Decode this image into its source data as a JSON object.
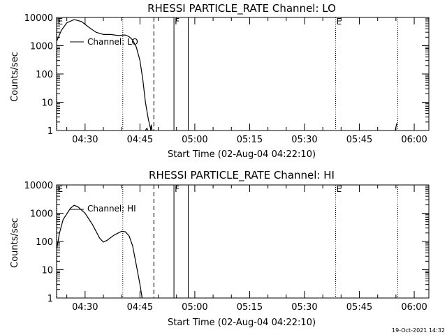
{
  "chart_data": [
    {
      "type": "line",
      "title": "RHESSI PARTICLE_RATE Channel: LO",
      "xlabel": "Start Time (02-Aug-04 04:22:10)",
      "ylabel": "Counts/sec",
      "yscale": "log",
      "ylim": [
        1,
        10000
      ],
      "xlim_minutes_after_0400": [
        22.2,
        124.0
      ],
      "x_tick_labels": [
        "04:30",
        "04:45",
        "05:00",
        "05:15",
        "05:30",
        "05:45",
        "06:00"
      ],
      "x_tick_minutes_after_0400": [
        30,
        45,
        60,
        75,
        90,
        105,
        120
      ],
      "y_tick_labels": [
        "1",
        "10",
        "100",
        "1000",
        "10000"
      ],
      "y_tick_values": [
        1,
        10,
        100,
        1000,
        10000
      ],
      "legend": "Channel: LO",
      "legend_position": "top-left",
      "markers": [
        {
          "label": "E",
          "x": 22.3,
          "style": "dotted"
        },
        {
          "label": "",
          "x": 40.3,
          "style": "dotted"
        },
        {
          "label": "",
          "x": 48.8,
          "style": "dashed"
        },
        {
          "label": "F",
          "x": 54.3,
          "style": "solid"
        },
        {
          "label": "",
          "x": 58.2,
          "style": "solid"
        },
        {
          "label": "E",
          "x": 98.5,
          "style": "dotted"
        },
        {
          "label": "",
          "x": 115.5,
          "style": "dotted"
        }
      ],
      "series": [
        {
          "segments": [
            [
              [
                22.3,
                1500
              ],
              [
                23.5,
                3500
              ],
              [
                25,
                6500
              ],
              [
                27,
                8400
              ],
              [
                29,
                7200
              ],
              [
                31,
                4500
              ],
              [
                33,
                3000
              ],
              [
                35,
                2500
              ],
              [
                37,
                2500
              ],
              [
                39,
                2300
              ],
              [
                41,
                2400
              ],
              [
                42,
                2100
              ],
              [
                43,
                1600
              ],
              [
                44,
                900
              ],
              [
                45,
                300
              ],
              [
                45.8,
                60
              ],
              [
                46.5,
                10
              ],
              [
                47.3,
                2.5
              ],
              [
                48,
                1.0
              ]
            ],
            [
              [
                47.9,
                1.0
              ],
              [
                48.1,
                1.6
              ],
              [
                48.3,
                1.0
              ]
            ],
            [
              [
                46.5,
                1.0
              ],
              [
                46.9,
                1.2
              ],
              [
                47.2,
                1.0
              ]
            ],
            [
              [
                114.8,
                1.0
              ],
              [
                115.0,
                1.3
              ],
              [
                115.2,
                1.8
              ]
            ]
          ]
        }
      ]
    },
    {
      "type": "line",
      "title": "RHESSI PARTICLE_RATE Channel: HI",
      "xlabel": "Start Time (02-Aug-04 04:22:10)",
      "ylabel": "Counts/sec",
      "yscale": "log",
      "ylim": [
        1,
        10000
      ],
      "xlim_minutes_after_0400": [
        22.2,
        124.0
      ],
      "x_tick_labels": [
        "04:30",
        "04:45",
        "05:00",
        "05:15",
        "05:30",
        "05:45",
        "06:00"
      ],
      "x_tick_minutes_after_0400": [
        30,
        45,
        60,
        75,
        90,
        105,
        120
      ],
      "y_tick_labels": [
        "1",
        "10",
        "100",
        "1000",
        "10000"
      ],
      "y_tick_values": [
        1,
        10,
        100,
        1000,
        10000
      ],
      "legend": "Channel: HI",
      "legend_position": "top-left",
      "markers": [
        {
          "label": "E",
          "x": 22.3,
          "style": "dotted"
        },
        {
          "label": "",
          "x": 40.3,
          "style": "dotted"
        },
        {
          "label": "",
          "x": 48.8,
          "style": "dashed"
        },
        {
          "label": "F",
          "x": 54.3,
          "style": "solid"
        },
        {
          "label": "",
          "x": 58.2,
          "style": "solid"
        },
        {
          "label": "E",
          "x": 98.5,
          "style": "dotted"
        },
        {
          "label": "",
          "x": 115.5,
          "style": "dotted"
        }
      ],
      "series": [
        {
          "segments": [
            [
              [
                22.3,
                60
              ],
              [
                23,
                200
              ],
              [
                24,
                600
              ],
              [
                26,
                1500
              ],
              [
                27,
                1900
              ],
              [
                28,
                1700
              ],
              [
                30,
                1000
              ],
              [
                32,
                400
              ],
              [
                34,
                130
              ],
              [
                35,
                95
              ],
              [
                36,
                110
              ],
              [
                38,
                170
              ],
              [
                40,
                230
              ],
              [
                41,
                220
              ],
              [
                42,
                160
              ],
              [
                43,
                70
              ],
              [
                44,
                15
              ],
              [
                45,
                3
              ],
              [
                45.6,
                1.0
              ]
            ]
          ]
        }
      ]
    }
  ],
  "footer_timestamp": "19-Oct-2021 14:32"
}
